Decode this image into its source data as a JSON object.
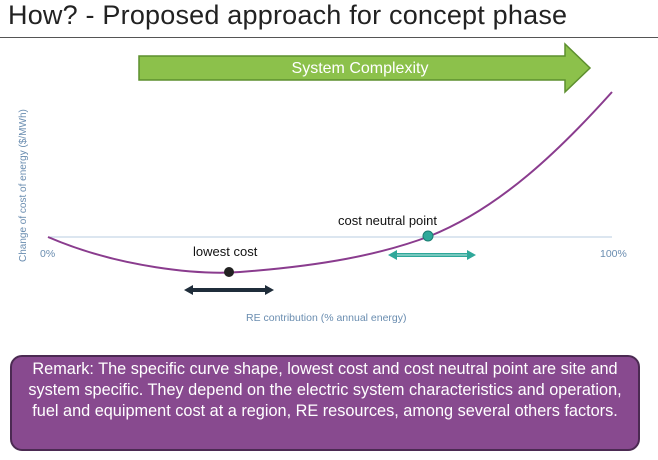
{
  "slide": {
    "title": "How? - Proposed approach for concept phase"
  },
  "arrow": {
    "label": "System Complexity",
    "fill_color": "#8cc14b",
    "stroke_color": "#5d8f2e"
  },
  "chart_data": {
    "type": "line",
    "xlabel": "RE contribution (% annual energy)",
    "ylabel": "Change of cost of energy ($/MWh)",
    "x_ticks": [
      "0%",
      "100%"
    ],
    "curve_color": "#8a3c8e",
    "annotations": [
      {
        "label": "lowest cost",
        "marker_color": "#222222"
      },
      {
        "label": "cost neutral point",
        "marker_color": "#2fa89a"
      }
    ],
    "range_arrows": [
      {
        "target": "lowest cost",
        "color": "#1f2d3a"
      },
      {
        "target": "cost neutral point",
        "color": "#2fa89a"
      }
    ]
  },
  "remark": {
    "text": "Remark: The specific curve shape, lowest cost and cost neutral point are site and system specific. They depend on the electric system characteristics and operation, fuel and equipment cost at a region, RE resources, among several others factors.",
    "background_color": "#884a8f"
  }
}
